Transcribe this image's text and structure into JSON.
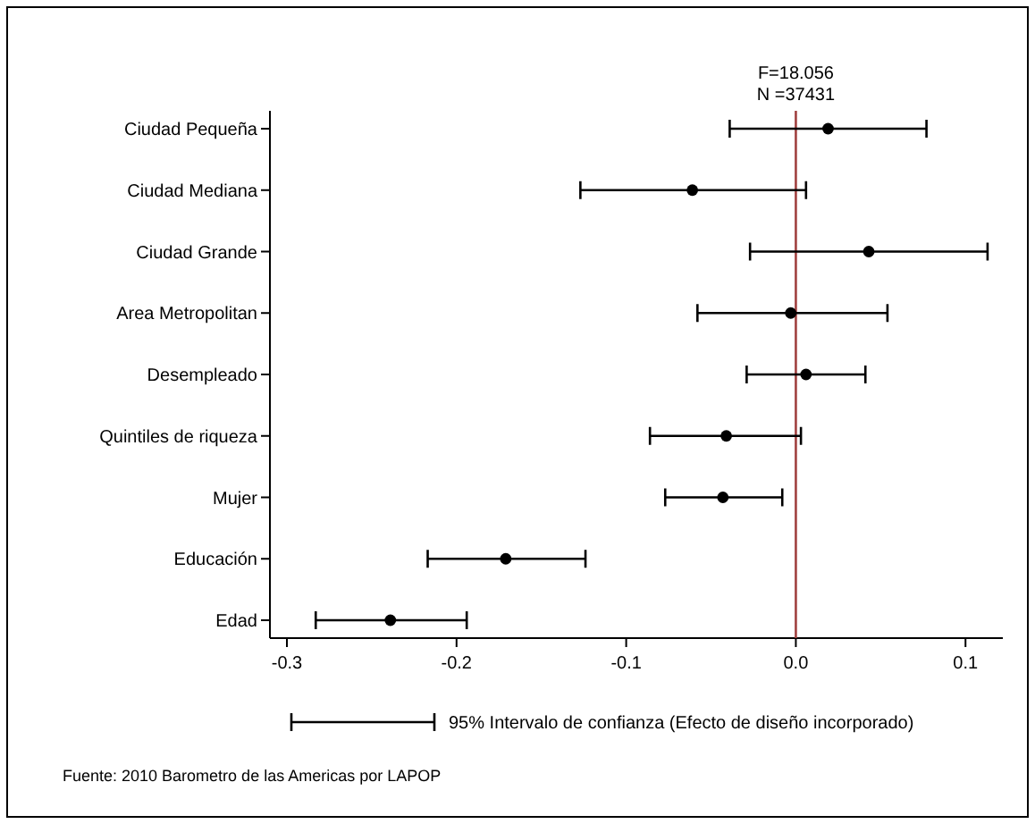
{
  "chart_data": {
    "type": "scatter",
    "orientation": "horizontal",
    "categories": [
      "Ciudad Pequeña",
      "Ciudad Mediana",
      "Ciudad Grande",
      "Area Metropolitan",
      "Desempleado",
      "Quintiles de riqueza",
      "Mujer",
      "Educación",
      "Edad"
    ],
    "series": [
      {
        "name": "95% Intervalo de confianza (Efecto de diseño incorporado)",
        "color": "#000000",
        "values": [
          0.019,
          -0.061,
          0.043,
          -0.003,
          0.006,
          -0.041,
          -0.043,
          -0.171,
          -0.239
        ],
        "errors": [
          [
            -0.039,
            0.077
          ],
          [
            -0.127,
            0.006
          ],
          [
            -0.027,
            0.113
          ],
          [
            -0.058,
            0.054
          ],
          [
            -0.029,
            0.041
          ],
          [
            -0.086,
            0.003
          ],
          [
            -0.077,
            -0.008
          ],
          [
            -0.217,
            -0.124
          ],
          [
            -0.283,
            -0.194
          ]
        ]
      }
    ],
    "xlim": [
      -0.31,
      0.122
    ],
    "xticks": [
      {
        "value": -0.3,
        "label": "-0.3"
      },
      {
        "value": -0.2,
        "label": "-0.2"
      },
      {
        "value": -0.1,
        "label": "-0.1"
      },
      {
        "value": 0,
        "label": "0.0"
      },
      {
        "value": 0.1,
        "label": "0.1"
      }
    ],
    "ref_lines": [
      {
        "axis": "x",
        "value": 0,
        "color": "#a0403f"
      }
    ],
    "marker": "circle",
    "grid": false,
    "legend": "bottom",
    "annotations": [
      "F=18.056",
      "N =37431",
      "Fuente: 2010 Barometro de las Americas por LAPOP"
    ]
  }
}
